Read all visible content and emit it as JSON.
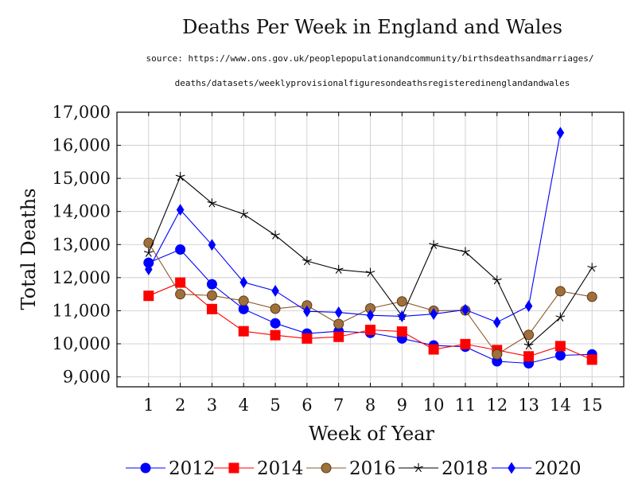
{
  "chart_data": {
    "type": "line",
    "title": "Deaths Per Week in England and Wales",
    "source_line1": "source: https://www.ons.gov.uk/peoplepopulationandcommunity/birthsdeathsandmarriages/",
    "source_line2": "deaths/datasets/weeklyprovisionalfiguresondeathsregisteredinenglandandwales",
    "xlabel": "Week of Year",
    "ylabel": "Total Deaths",
    "x": [
      1,
      2,
      3,
      4,
      5,
      6,
      7,
      8,
      9,
      10,
      11,
      12,
      13,
      14,
      15
    ],
    "xlim": [
      0,
      16
    ],
    "ylim": [
      8700,
      17000
    ],
    "yticks": [
      9000,
      10000,
      11000,
      12000,
      13000,
      14000,
      15000,
      16000,
      17000
    ],
    "ytick_labels": [
      "9,000",
      "10,000",
      "11,000",
      "12,000",
      "13,000",
      "14,000",
      "15,000",
      "16,000",
      "17,000"
    ],
    "grid": true,
    "legend_position": "bottom",
    "series": [
      {
        "name": "2012",
        "color": "#0000ff",
        "marker": "circle",
        "values": [
          12450,
          12850,
          11800,
          11050,
          10620,
          10310,
          10380,
          10330,
          10160,
          9950,
          9910,
          9470,
          9410,
          9650,
          9680
        ]
      },
      {
        "name": "2014",
        "color": "#ff0000",
        "marker": "square",
        "values": [
          11450,
          11850,
          11050,
          10380,
          10260,
          10160,
          10210,
          10420,
          10370,
          9830,
          9990,
          9810,
          9620,
          9930,
          9520
        ]
      },
      {
        "name": "2016",
        "color": "#8b5a2b",
        "marker": "circle",
        "values": [
          13050,
          11500,
          11460,
          11300,
          11060,
          11160,
          10600,
          11070,
          11280,
          11000,
          11010,
          9680,
          10270,
          11590,
          11420
        ]
      },
      {
        "name": "2018",
        "color": "#000000",
        "marker": "star",
        "values": [
          12750,
          15050,
          14250,
          13920,
          13280,
          12500,
          12240,
          12150,
          10840,
          12990,
          12780,
          11920,
          9950,
          10800,
          12300
        ]
      },
      {
        "name": "2020",
        "color": "#0000ff",
        "marker": "diamond",
        "values": [
          12250,
          14050,
          12990,
          11860,
          11600,
          10980,
          10950,
          10860,
          10830,
          10900,
          11030,
          10650,
          11140,
          16380,
          null
        ]
      }
    ]
  }
}
